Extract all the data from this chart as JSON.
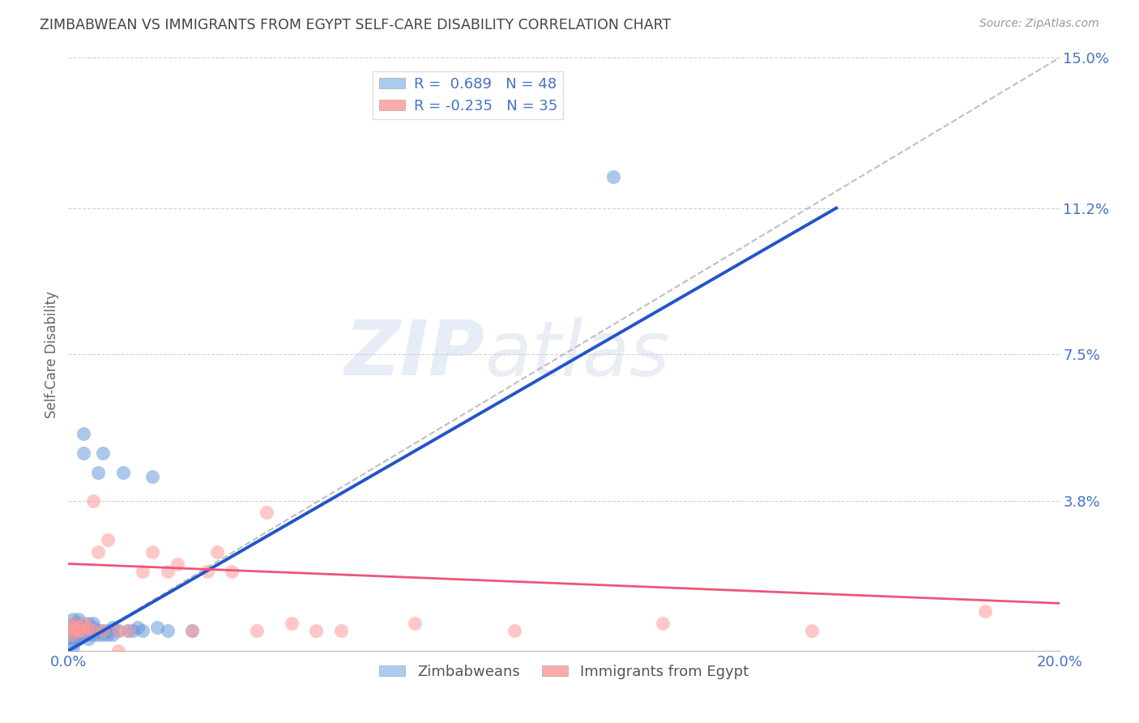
{
  "title": "ZIMBABWEAN VS IMMIGRANTS FROM EGYPT SELF-CARE DISABILITY CORRELATION CHART",
  "source": "Source: ZipAtlas.com",
  "ylabel": "Self-Care Disability",
  "xlim": [
    0.0,
    0.2
  ],
  "ylim": [
    0.0,
    0.15
  ],
  "yticks": [
    0.0,
    0.038,
    0.075,
    0.112,
    0.15
  ],
  "ytick_labels": [
    "",
    "3.8%",
    "7.5%",
    "11.2%",
    "15.0%"
  ],
  "xticks": [
    0.0,
    0.05,
    0.1,
    0.15,
    0.2
  ],
  "xtick_labels": [
    "0.0%",
    "",
    "",
    "",
    "20.0%"
  ],
  "watermark_zip": "ZIP",
  "watermark_atlas": "atlas",
  "legend_R1": "R =  0.689",
  "legend_N1": "N = 48",
  "legend_R2": "R = -0.235",
  "legend_N2": "N = 35",
  "blue_scatter_color": "#6699DD",
  "pink_scatter_color": "#FF9999",
  "blue_line_color": "#2255CC",
  "pink_line_color": "#EE5577",
  "blue_line_x": [
    0.0,
    0.155
  ],
  "blue_line_y": [
    0.0,
    0.112
  ],
  "pink_line_x": [
    0.0,
    0.2
  ],
  "pink_line_y": [
    0.022,
    0.012
  ],
  "dashed_line_x": [
    0.0,
    0.2
  ],
  "dashed_line_y": [
    0.0,
    0.15
  ],
  "dashed_line_color": "#AAAAAA",
  "grid_color": "#CCCCCC",
  "title_color": "#444444",
  "axis_tick_color": "#4472C4",
  "ylabel_color": "#666666",
  "background_color": "#FFFFFF",
  "blue_legend_color": "#AACCEE",
  "pink_legend_color": "#FFAAAA",
  "zim_x": [
    0.001,
    0.001,
    0.001,
    0.001,
    0.001,
    0.001,
    0.001,
    0.002,
    0.002,
    0.002,
    0.002,
    0.002,
    0.002,
    0.003,
    0.003,
    0.003,
    0.003,
    0.004,
    0.004,
    0.004,
    0.004,
    0.004,
    0.005,
    0.005,
    0.005,
    0.005,
    0.006,
    0.006,
    0.006,
    0.007,
    0.007,
    0.007,
    0.008,
    0.008,
    0.009,
    0.009,
    0.01,
    0.011,
    0.012,
    0.013,
    0.014,
    0.015,
    0.017,
    0.018,
    0.02,
    0.025,
    0.11,
    0.001
  ],
  "zim_y": [
    0.005,
    0.006,
    0.003,
    0.004,
    0.007,
    0.002,
    0.008,
    0.005,
    0.004,
    0.006,
    0.003,
    0.007,
    0.008,
    0.05,
    0.005,
    0.004,
    0.055,
    0.005,
    0.006,
    0.003,
    0.007,
    0.004,
    0.005,
    0.006,
    0.004,
    0.007,
    0.005,
    0.004,
    0.045,
    0.005,
    0.004,
    0.05,
    0.004,
    0.005,
    0.004,
    0.006,
    0.005,
    0.045,
    0.005,
    0.005,
    0.006,
    0.005,
    0.044,
    0.006,
    0.005,
    0.005,
    0.12,
    0.001
  ],
  "egy_x": [
    0.001,
    0.001,
    0.001,
    0.001,
    0.002,
    0.002,
    0.003,
    0.003,
    0.004,
    0.005,
    0.005,
    0.006,
    0.007,
    0.008,
    0.01,
    0.012,
    0.015,
    0.017,
    0.02,
    0.022,
    0.025,
    0.028,
    0.03,
    0.033,
    0.038,
    0.04,
    0.045,
    0.05,
    0.055,
    0.07,
    0.09,
    0.12,
    0.15,
    0.185,
    0.01
  ],
  "egy_y": [
    0.005,
    0.006,
    0.004,
    0.007,
    0.005,
    0.006,
    0.005,
    0.007,
    0.006,
    0.005,
    0.038,
    0.025,
    0.005,
    0.028,
    0.005,
    0.005,
    0.02,
    0.025,
    0.02,
    0.022,
    0.005,
    0.02,
    0.025,
    0.02,
    0.005,
    0.035,
    0.007,
    0.005,
    0.005,
    0.007,
    0.005,
    0.007,
    0.005,
    0.01,
    0.0
  ]
}
